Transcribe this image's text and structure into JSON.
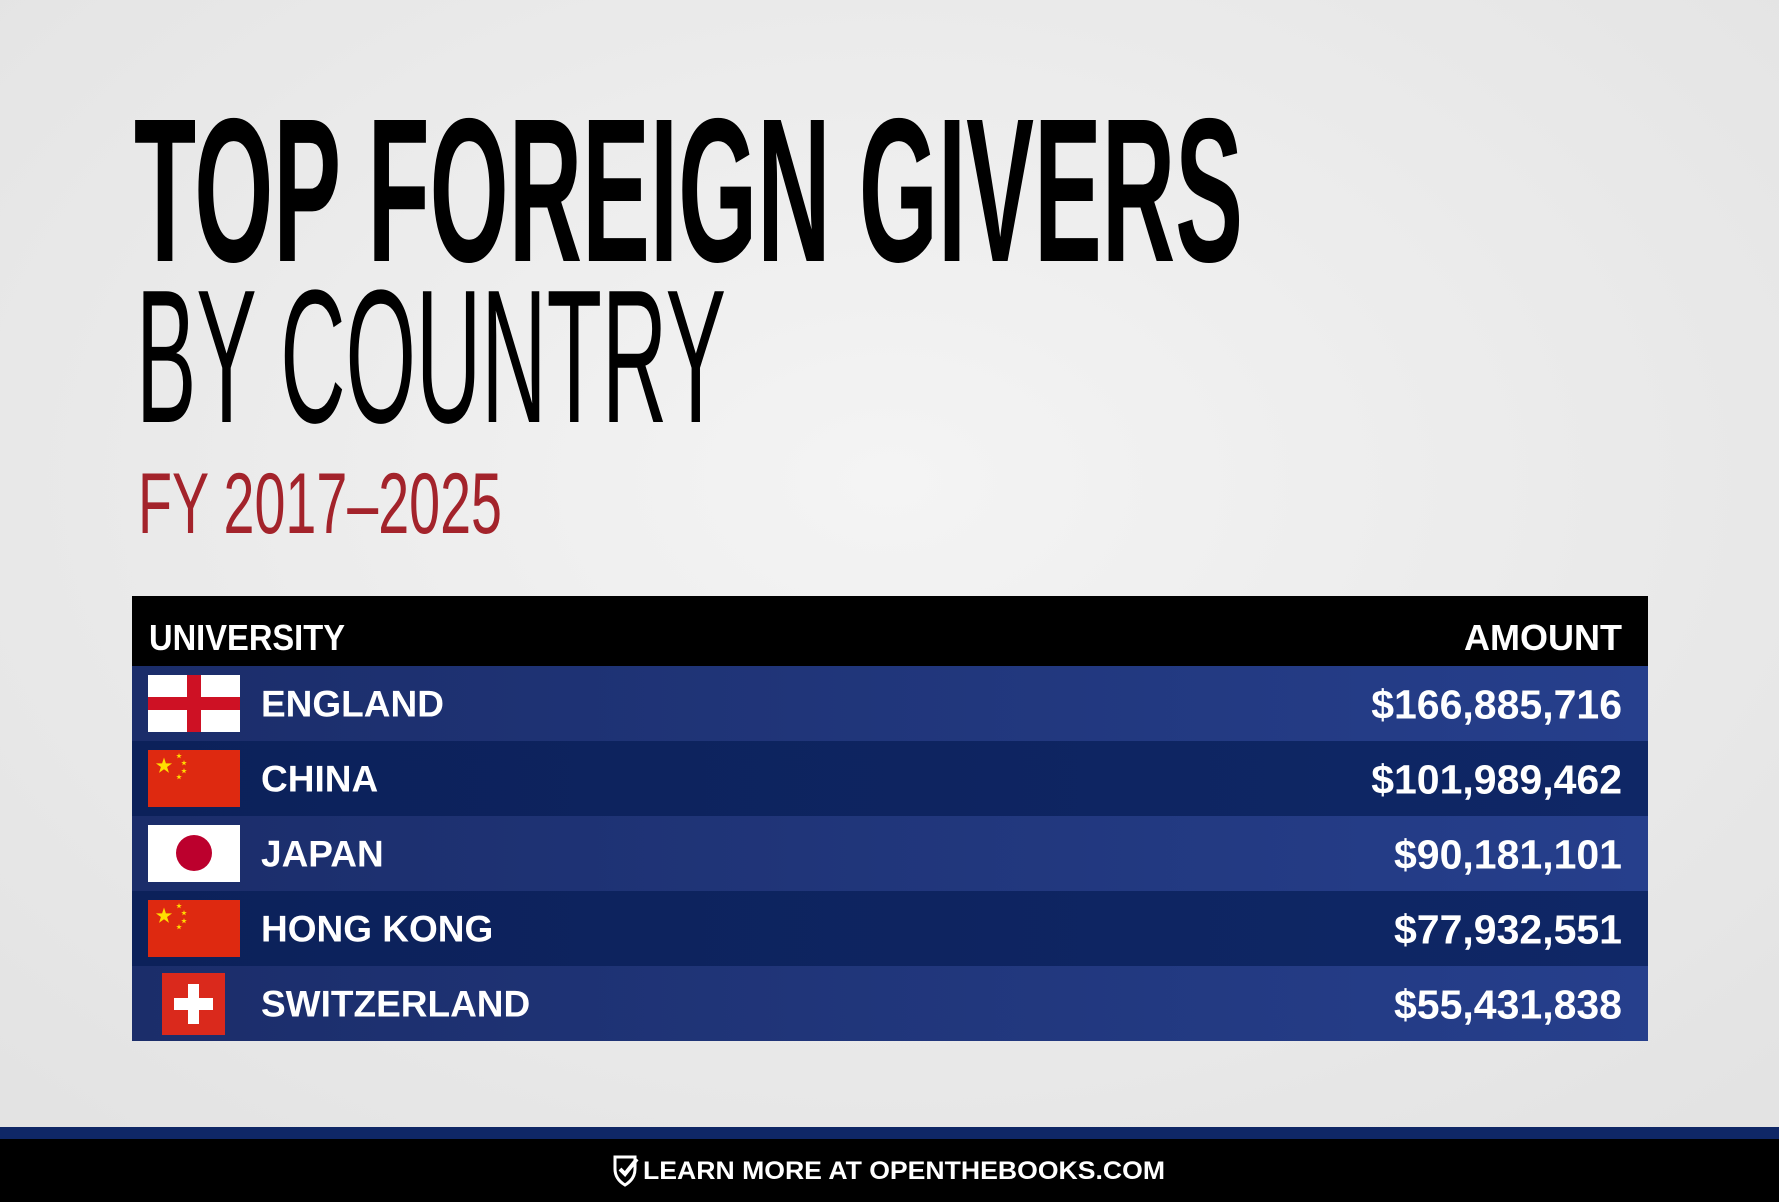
{
  "header": {
    "title": "TOP FOREIGN GIVERS",
    "subtitle": "BY COUNTRY",
    "period": "FY 2017–2025"
  },
  "table": {
    "columns": [
      "UNIVERSITY",
      "AMOUNT"
    ],
    "rows": [
      [
        "ENGLAND",
        "$166,885,716"
      ],
      [
        "CHINA",
        "$101,989,462"
      ],
      [
        "JAPAN",
        "$90,181,101"
      ],
      [
        "HONG KONG",
        "$77,932,551"
      ],
      [
        "SWITZERLAND",
        "$55,431,838"
      ]
    ]
  },
  "footer": {
    "text": "LEARN MORE AT OPENTHEBOOKS.COM"
  }
}
